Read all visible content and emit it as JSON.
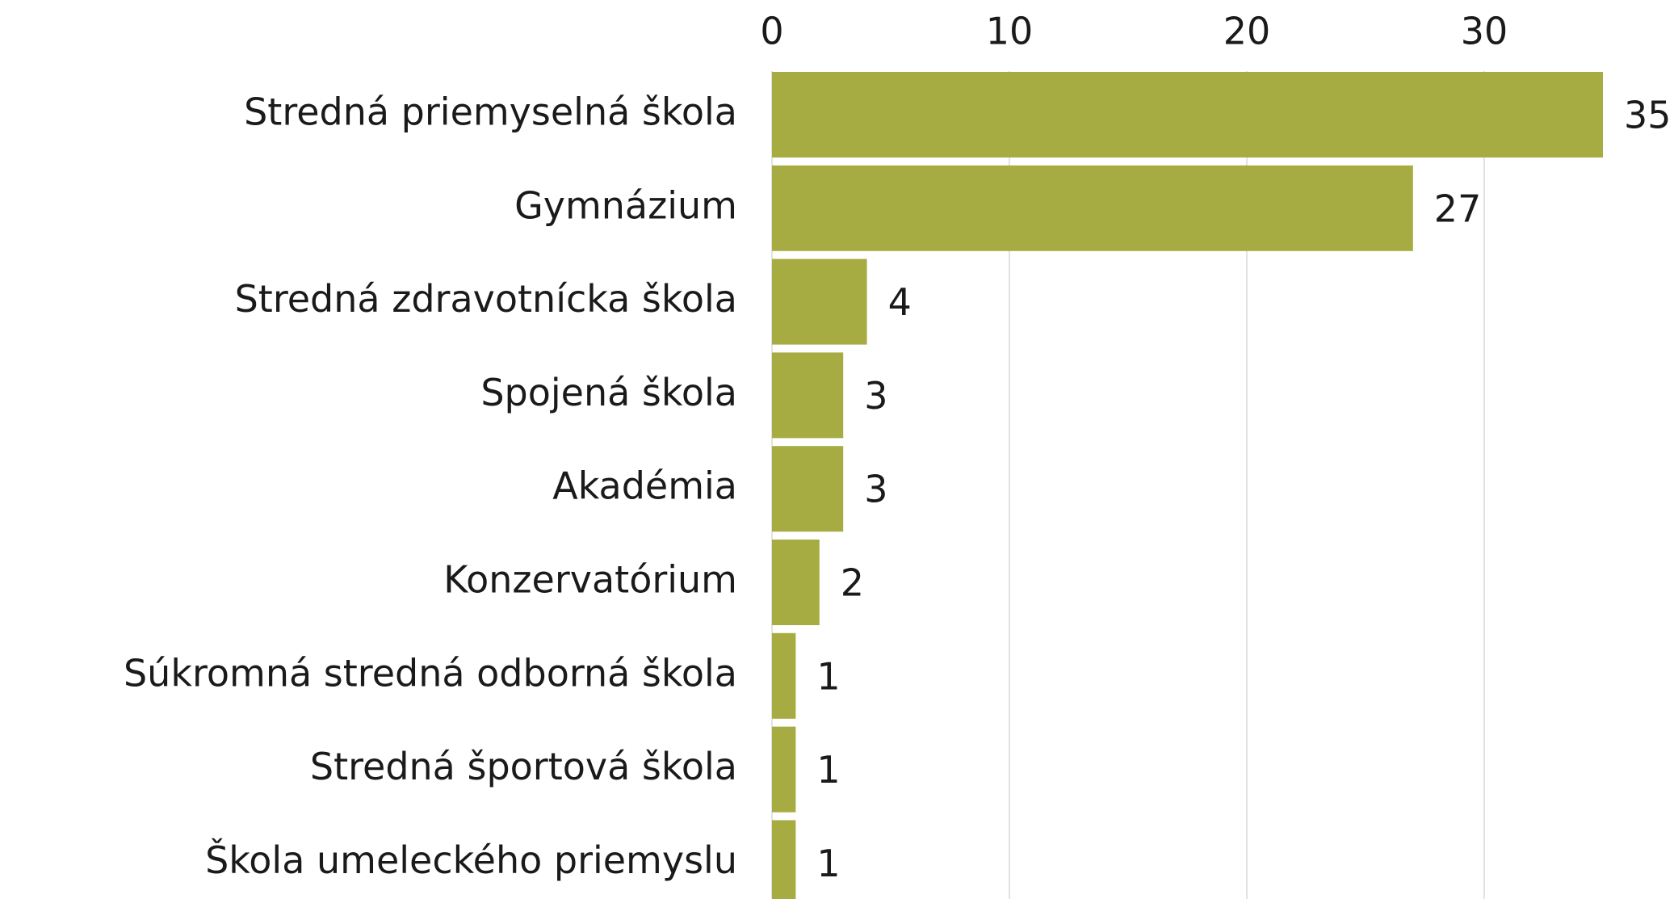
{
  "chart_data": {
    "type": "barh",
    "categories": [
      "Stredná priemyselná škola",
      "Gymnázium",
      "Stredná zdravotnícka škola",
      "Spojená škola",
      "Akadémia",
      "Konzervatórium",
      "Súkromná stredná odborná škola",
      "Stredná športová škola",
      "Škola umeleckého priemyslu"
    ],
    "values": [
      35,
      27,
      4,
      3,
      3,
      2,
      1,
      1,
      1
    ],
    "color": "#a6ac42",
    "xlim": [
      0,
      35
    ],
    "xticks": [
      0,
      10,
      20,
      30
    ],
    "grid": true
  }
}
